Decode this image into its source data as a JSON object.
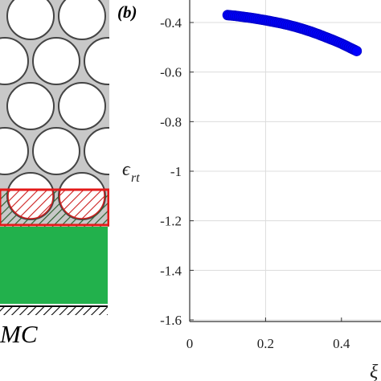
{
  "panel_a": {
    "label": "MC",
    "colors": {
      "fill": "#22b14c",
      "hatch": "#cc1f1f",
      "pore": "#c8c8c8"
    }
  },
  "chart_data": {
    "type": "scatter",
    "panel_label": "(b)",
    "title": "",
    "xlabel": "ξ",
    "ylabel": "ϵ",
    "ylabel_sub": "rt",
    "xlim": [
      0,
      0.45
    ],
    "ylim": [
      -1.6,
      -0.35
    ],
    "xticks": [
      "0",
      "0.2",
      "0.4"
    ],
    "yticks": [
      "-0.4",
      "-0.6",
      "-0.8",
      "-1",
      "-1.2",
      "-1.4",
      "-1.6"
    ],
    "grid": true,
    "series": [
      {
        "color": "#0000ff",
        "x": [
          0.1,
          0.12,
          0.14,
          0.16,
          0.18,
          0.2,
          0.22,
          0.24,
          0.26,
          0.28,
          0.3,
          0.32,
          0.34,
          0.36,
          0.38,
          0.4,
          0.42,
          0.44
        ],
        "y": [
          -0.37,
          -0.373,
          -0.377,
          -0.381,
          -0.386,
          -0.391,
          -0.397,
          -0.403,
          -0.41,
          -0.418,
          -0.427,
          -0.437,
          -0.448,
          -0.46,
          -0.472,
          -0.485,
          -0.5,
          -0.515
        ]
      }
    ]
  }
}
